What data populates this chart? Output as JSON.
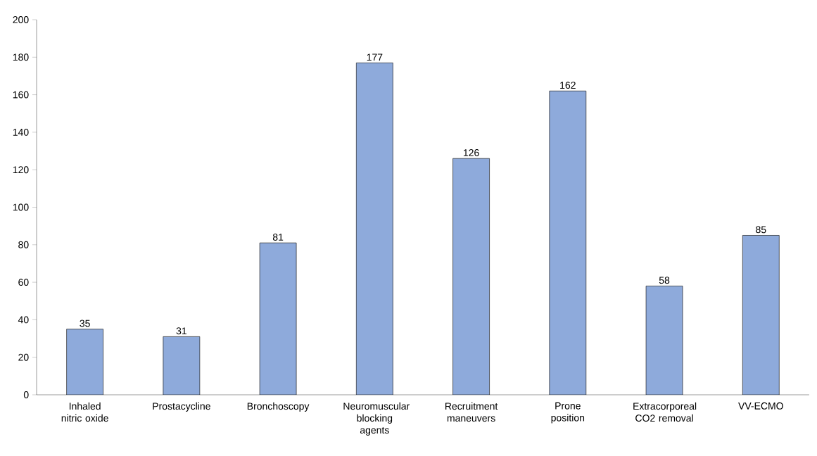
{
  "chart_data": {
    "type": "bar",
    "categories": [
      "Inhaled nitric oxide",
      "Prostacycline",
      "Bronchoscopy",
      "Neuromuscular blocking agents",
      "Recruitment maneuvers",
      "Prone position",
      "Extracorporeal CO2 removal",
      "VV-ECMO"
    ],
    "values": [
      35,
      31,
      81,
      177,
      126,
      162,
      58,
      85
    ],
    "color": "#8eaadb",
    "ylim": [
      0,
      200
    ],
    "yticks": [
      0,
      20,
      40,
      60,
      80,
      100,
      120,
      140,
      160,
      180,
      200
    ],
    "data_labels": true,
    "grid": false
  }
}
